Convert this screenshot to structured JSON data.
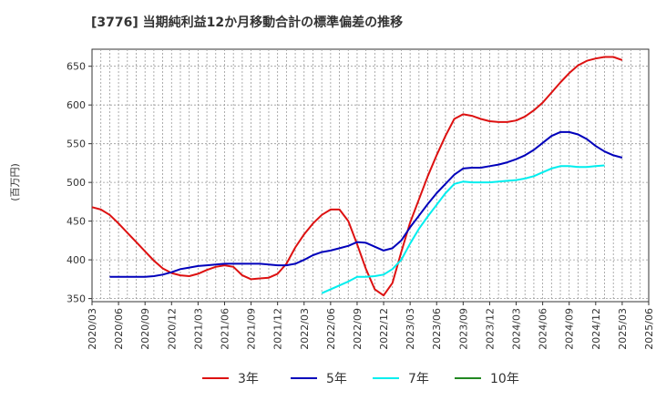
{
  "chart_data": {
    "type": "line",
    "title": "[3776]  当期純利益12か月移動合計の標準偏差の推移",
    "ylabel": "(百万円)",
    "xlabel": "",
    "ylim": [
      346,
      672
    ],
    "yticks": [
      350,
      400,
      450,
      500,
      550,
      600,
      650
    ],
    "xlim": [
      "2020-03",
      "2025-06"
    ],
    "xticks": [
      "2020/03",
      "2020/06",
      "2020/09",
      "2020/12",
      "2021/03",
      "2021/06",
      "2021/09",
      "2021/12",
      "2022/03",
      "2022/06",
      "2022/09",
      "2022/12",
      "2023/03",
      "2023/06",
      "2023/09",
      "2023/12",
      "2024/03",
      "2024/06",
      "2024/09",
      "2024/12",
      "2025/03",
      "2025/06"
    ],
    "grid": true,
    "legend_position": "bottom",
    "series": [
      {
        "name": "3年",
        "color": "#dd1111",
        "start": "2020-03",
        "values": [
          468,
          465,
          458,
          447,
          435,
          423,
          411,
          399,
          389,
          383,
          380,
          379,
          382,
          387,
          391,
          393,
          391,
          380,
          375,
          376,
          377,
          382,
          395,
          416,
          433,
          447,
          458,
          465,
          465,
          450,
          420,
          388,
          362,
          354,
          370,
          410,
          448,
          478,
          508,
          535,
          560,
          582,
          588,
          586,
          582,
          579,
          578,
          578,
          580,
          585,
          593,
          603,
          616,
          629,
          641,
          651,
          657,
          660,
          662,
          662,
          658
        ]
      },
      {
        "name": "5年",
        "color": "#0000bb",
        "start": "2020-05",
        "values": [
          378,
          378,
          378,
          378,
          378,
          379,
          381,
          384,
          388,
          390,
          392,
          393,
          394,
          395,
          395,
          395,
          395,
          395,
          394,
          393,
          393,
          395,
          400,
          406,
          410,
          412,
          415,
          418,
          423,
          422,
          417,
          412,
          415,
          425,
          442,
          457,
          472,
          486,
          498,
          510,
          518,
          519,
          519,
          521,
          523,
          526,
          530,
          535,
          542,
          551,
          560,
          565,
          565,
          562,
          556,
          547,
          540,
          535,
          532
        ]
      },
      {
        "name": "7年",
        "color": "#00eeee",
        "start": "2022-05",
        "values": [
          357,
          362,
          367,
          372,
          378,
          378,
          379,
          381,
          388,
          400,
          421,
          440,
          456,
          471,
          486,
          498,
          501,
          500,
          500,
          500,
          501,
          502,
          503,
          505,
          508,
          513,
          518,
          521,
          521,
          520,
          520,
          521,
          522
        ]
      },
      {
        "name": "10年",
        "color": "#228822",
        "start": "2020-03",
        "values": []
      }
    ]
  }
}
